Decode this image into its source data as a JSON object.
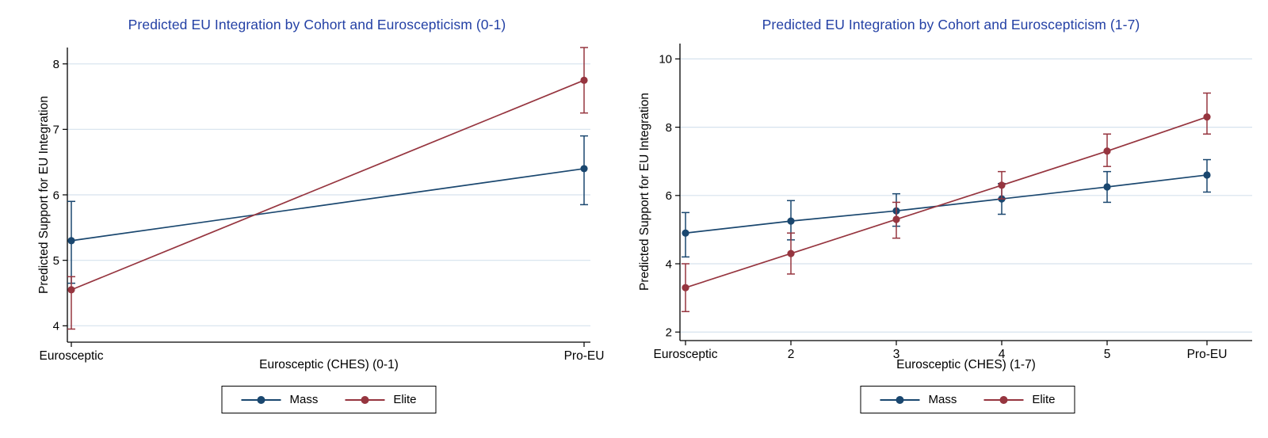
{
  "colors": {
    "title": "#2441a5",
    "axis": "#000000",
    "grid": "#d6e2ee",
    "background": "#ffffff",
    "mass": "#1A476F",
    "elite": "#96353F"
  },
  "chart_data": [
    {
      "type": "line",
      "title": "Predicted EU Integration by Cohort and Euroscepticism (0-1)",
      "ylabel": "Predicted Support for EU Integration",
      "xlabel": "Eurosceptic (CHES) (0-1)",
      "categories": [
        "Eurosceptic",
        "Pro-EU"
      ],
      "yticks": [
        4,
        5,
        6,
        7,
        8
      ],
      "ylim": [
        3.75,
        8.25
      ],
      "grid": true,
      "legend_position": "bottom",
      "series": [
        {
          "name": "Mass",
          "color": "#1A476F",
          "values": [
            5.3,
            6.4
          ],
          "ci_low": [
            4.65,
            5.85
          ],
          "ci_high": [
            5.9,
            6.9
          ]
        },
        {
          "name": "Elite",
          "color": "#96353F",
          "values": [
            4.55,
            7.75
          ],
          "ci_low": [
            3.95,
            7.25
          ],
          "ci_high": [
            4.75,
            8.25
          ]
        }
      ]
    },
    {
      "type": "line",
      "title": "Predicted EU Integration by Cohort and Euroscepticism (1-7)",
      "ylabel": "Predicted Support for EU Integration",
      "xlabel": "Eurosceptic (CHES) (1-7)",
      "categories": [
        "Eurosceptic",
        "2",
        "3",
        "4",
        "5",
        "Pro-EU"
      ],
      "yticks": [
        2,
        4,
        6,
        8,
        10
      ],
      "ylim": [
        1.75,
        10.45
      ],
      "grid": true,
      "legend_position": "bottom",
      "series": [
        {
          "name": "Mass",
          "color": "#1A476F",
          "values": [
            4.9,
            5.25,
            5.55,
            5.9,
            6.25,
            6.6
          ],
          "ci_low": [
            4.2,
            4.7,
            5.1,
            5.45,
            5.8,
            6.1
          ],
          "ci_high": [
            5.5,
            5.85,
            6.05,
            6.35,
            6.7,
            7.05
          ]
        },
        {
          "name": "Elite",
          "color": "#96353F",
          "values": [
            3.3,
            4.3,
            5.3,
            6.3,
            7.3,
            8.3
          ],
          "ci_low": [
            2.6,
            3.7,
            4.75,
            5.9,
            6.85,
            7.8
          ],
          "ci_high": [
            4.0,
            4.9,
            5.8,
            6.7,
            7.8,
            9.0
          ]
        }
      ]
    }
  ]
}
